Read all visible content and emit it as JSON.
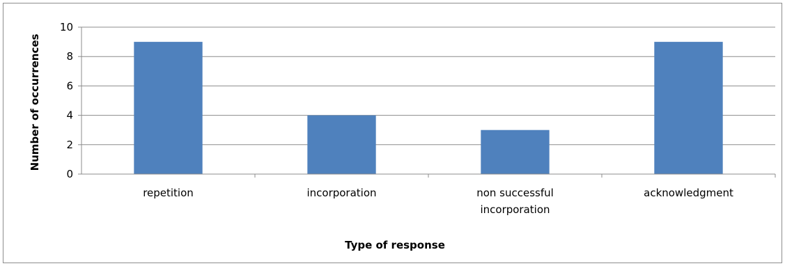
{
  "chart_data": {
    "type": "bar",
    "categories": [
      [
        "repetition"
      ],
      [
        "incorporation"
      ],
      [
        "non successful",
        "incorporation"
      ],
      [
        "acknowledgment"
      ]
    ],
    "values": [
      9,
      4,
      3,
      9
    ],
    "title": "",
    "xlabel": "Type of response",
    "ylabel": "Number of occurrences",
    "ylim": [
      0,
      10
    ],
    "yticks": [
      "0",
      "2",
      "4",
      "6",
      "8",
      "10"
    ],
    "grid": true,
    "legend": "none",
    "bar_color": "#4F81BD"
  }
}
